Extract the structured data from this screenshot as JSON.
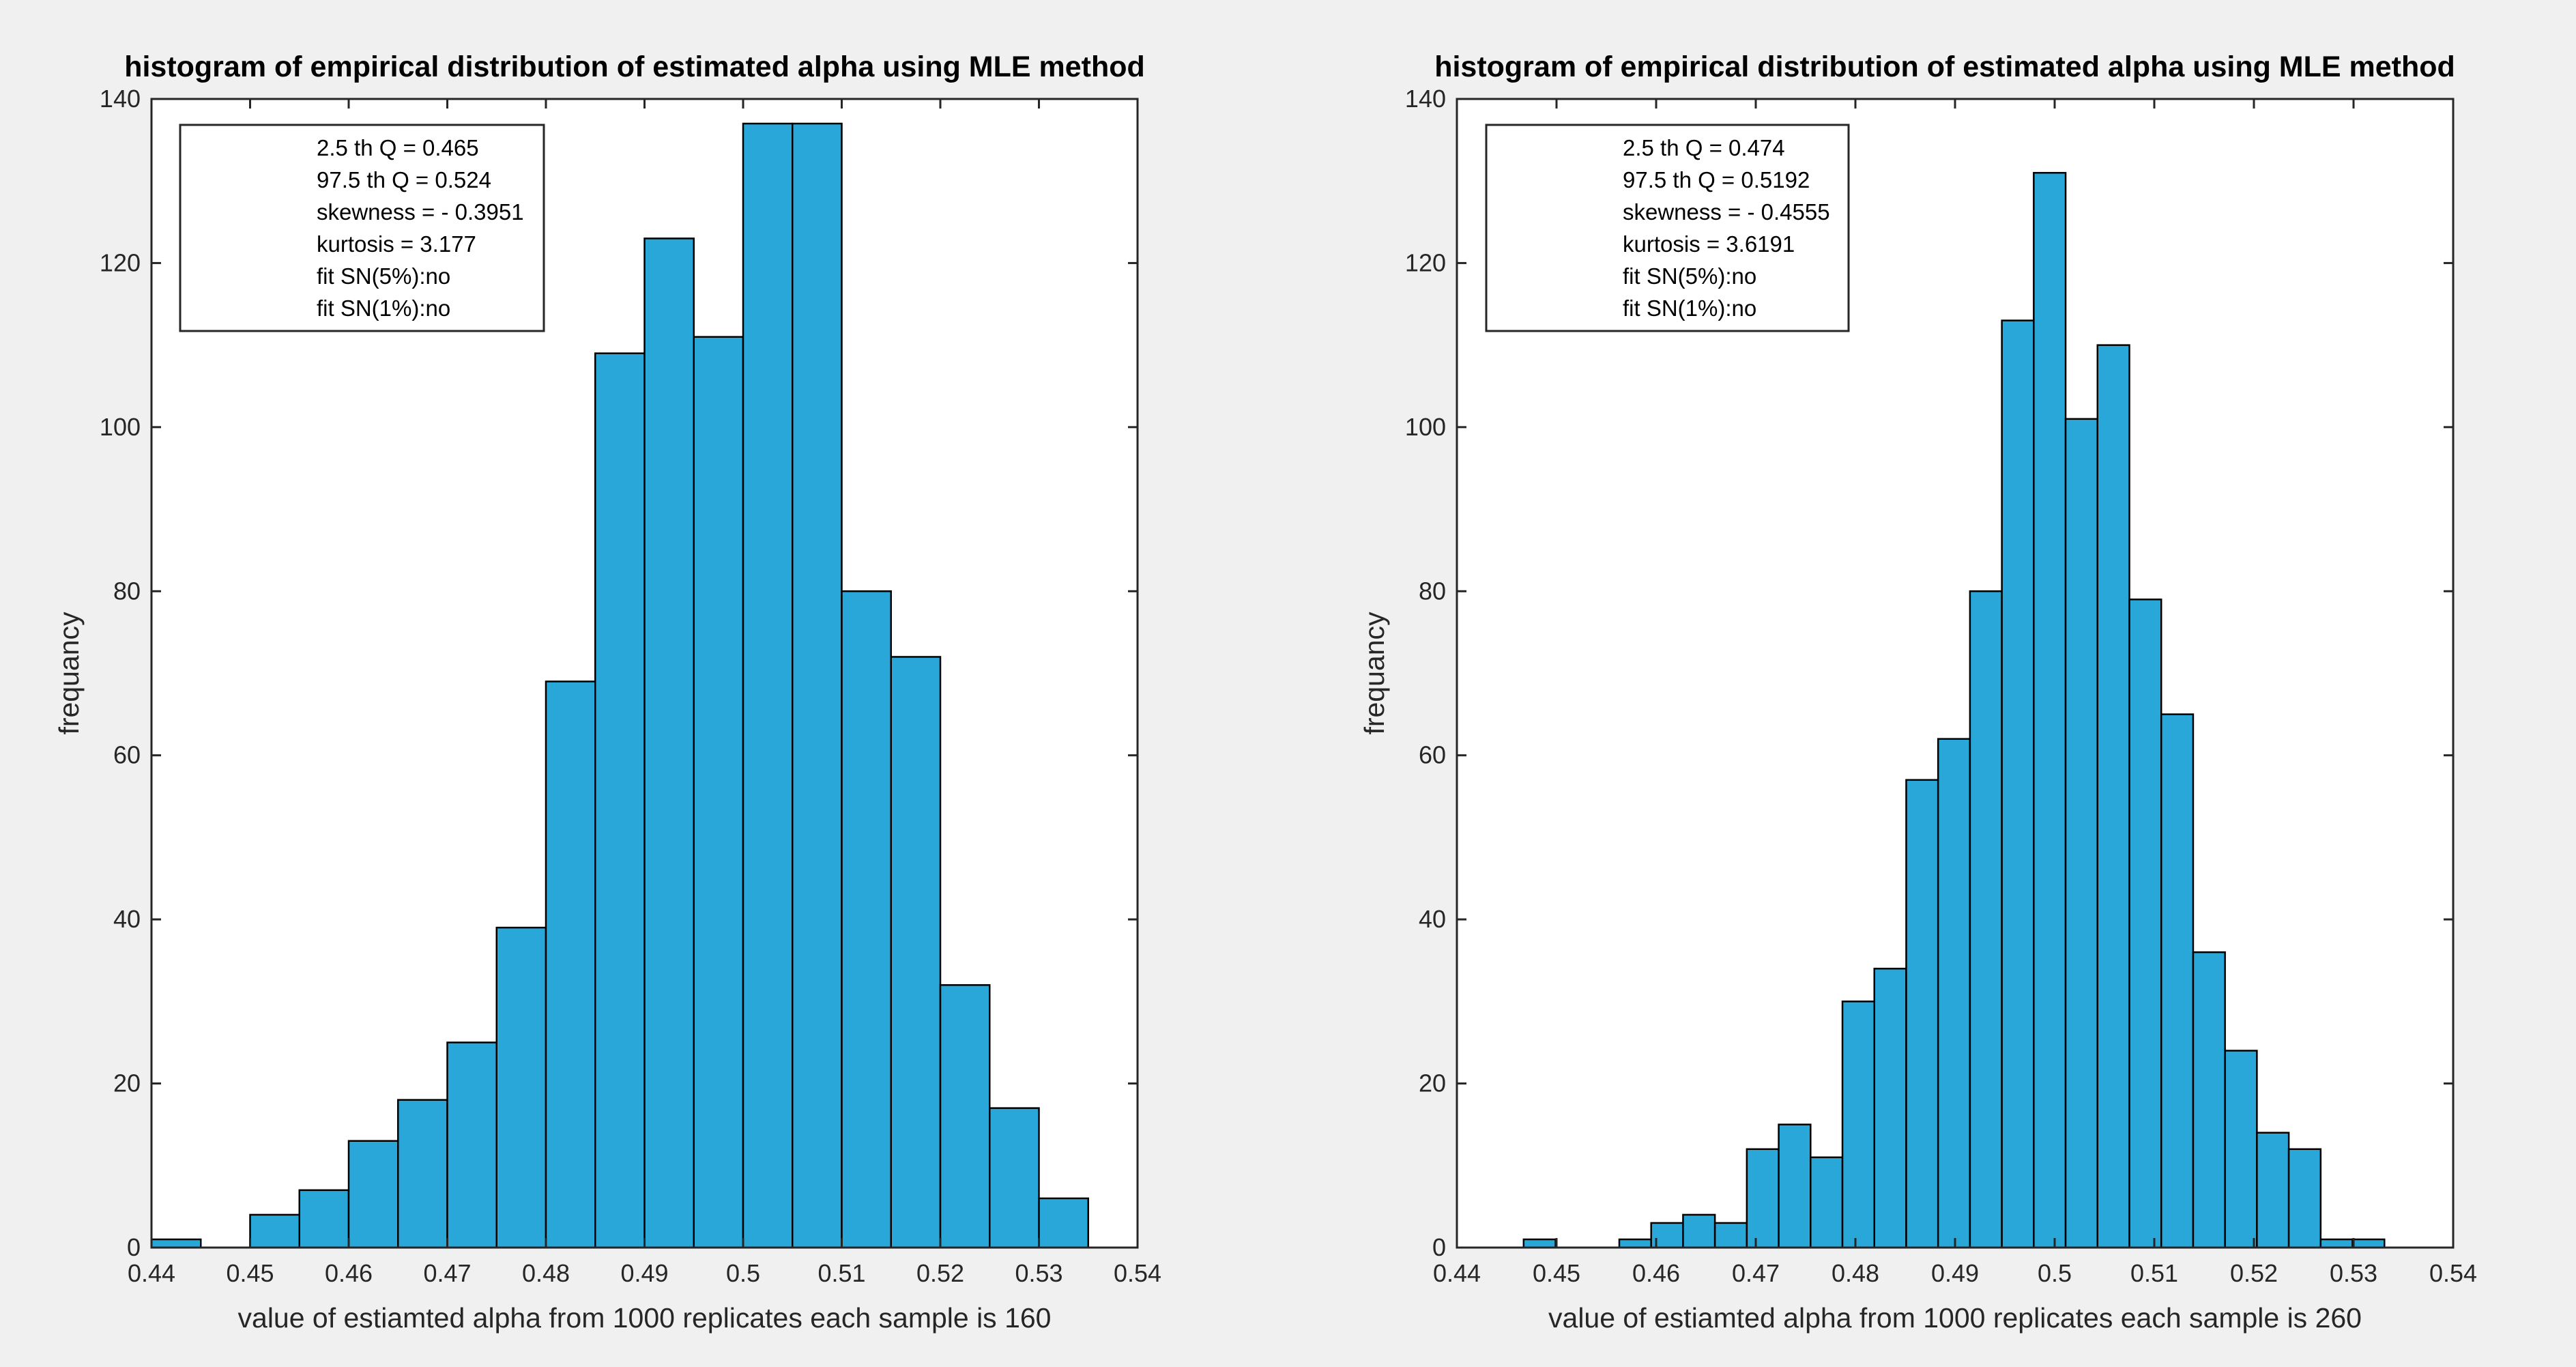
{
  "colors": {
    "bar": "#2aa7d9",
    "background": "#f0f0f0",
    "axes": "#262626"
  },
  "chart_data": [
    {
      "type": "bar",
      "title": "histogram of empirical distribution of estimated alpha using MLE method",
      "xlabel": "value of estiamted alpha from 1000 replicates each sample is 160",
      "ylabel": "frequancy",
      "xlim": [
        0.44,
        0.54
      ],
      "ylim": [
        0,
        140
      ],
      "xticks": [
        "0.44",
        "0.45",
        "0.46",
        "0.47",
        "0.48",
        "0.49",
        "0.5",
        "0.51",
        "0.52",
        "0.53",
        "0.54"
      ],
      "yticks": [
        "0",
        "20",
        "40",
        "60",
        "80",
        "100",
        "120",
        "140"
      ],
      "bin_edges": [
        0.44,
        0.445,
        0.45,
        0.455,
        0.46,
        0.465,
        0.47,
        0.475,
        0.48,
        0.485,
        0.49,
        0.495,
        0.5,
        0.505,
        0.51,
        0.515,
        0.52,
        0.525,
        0.53,
        0.535
      ],
      "values": [
        1,
        0,
        4,
        7,
        13,
        18,
        25,
        39,
        69,
        109,
        123,
        111,
        137,
        137,
        80,
        72,
        32,
        17,
        6
      ],
      "legend": [
        "2.5 th Q = 0.465",
        "97.5 th Q = 0.524",
        "skewness = - 0.3951",
        "kurtosis = 3.177",
        "fit SN(5%):no",
        "fit SN(1%):no"
      ],
      "legend_position": "top-left"
    },
    {
      "type": "bar",
      "title": "histogram of empirical distribution of estimated alpha using MLE method",
      "xlabel": "value of estiamted alpha from 1000 replicates each sample is 260",
      "ylabel": "frequancy",
      "xlim": [
        0.44,
        0.54
      ],
      "ylim": [
        0,
        140
      ],
      "xticks": [
        "0.44",
        "0.45",
        "0.46",
        "0.47",
        "0.48",
        "0.49",
        "0.5",
        "0.51",
        "0.52",
        "0.53",
        "0.54"
      ],
      "yticks": [
        "0",
        "20",
        "40",
        "60",
        "80",
        "100",
        "120",
        "140"
      ],
      "bin_edges": [
        0.4467,
        0.4499,
        0.4531,
        0.4563,
        0.4595,
        0.4627,
        0.4659,
        0.4691,
        0.4723,
        0.4755,
        0.4787,
        0.4819,
        0.4851,
        0.4883,
        0.4915,
        0.4947,
        0.4979,
        0.5011,
        0.5043,
        0.5075,
        0.5107,
        0.5139,
        0.5171,
        0.5203,
        0.5235,
        0.5267,
        0.5299,
        0.5331
      ],
      "values": [
        1,
        0,
        0,
        1,
        3,
        4,
        3,
        12,
        15,
        11,
        30,
        34,
        57,
        62,
        80,
        113,
        131,
        101,
        110,
        79,
        65,
        36,
        24,
        14,
        12,
        1,
        1
      ],
      "legend": [
        "2.5 th Q = 0.474",
        "97.5 th Q = 0.5192",
        "skewness = - 0.4555",
        "kurtosis = 3.6191",
        "fit SN(5%):no",
        "fit SN(1%):no"
      ],
      "legend_position": "top-left"
    }
  ]
}
